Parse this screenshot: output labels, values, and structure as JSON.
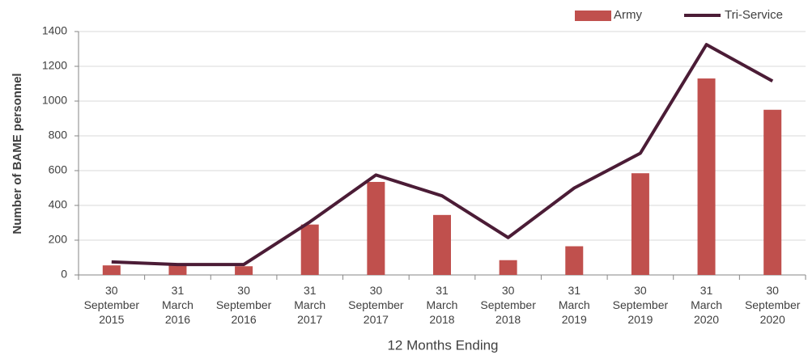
{
  "chart_data": {
    "type": "bar",
    "categories": [
      "30 September 2015",
      "31 March 2016",
      "30 September 2016",
      "31 March 2017",
      "30 September 2017",
      "31 March 2018",
      "30 September 2018",
      "31 March 2019",
      "30 September 2019",
      "31 March 2020",
      "30 September 2020"
    ],
    "series": [
      {
        "name": "Army",
        "type": "bar",
        "color": "#c0504d",
        "values": [
          55,
          60,
          50,
          290,
          535,
          345,
          85,
          165,
          585,
          1130,
          950
        ]
      },
      {
        "name": "Tri-Service",
        "type": "line",
        "color": "#4b1c36",
        "values": [
          75,
          60,
          60,
          305,
          575,
          455,
          215,
          500,
          700,
          1325,
          1115
        ]
      }
    ],
    "ylim": [
      0,
      1400
    ],
    "yticks": [
      0,
      200,
      400,
      600,
      800,
      1000,
      1200,
      1400
    ],
    "ylabel": "Number of BAME personnel",
    "xlabel": "12 Months Ending",
    "grid": true,
    "legend": "top-right"
  }
}
